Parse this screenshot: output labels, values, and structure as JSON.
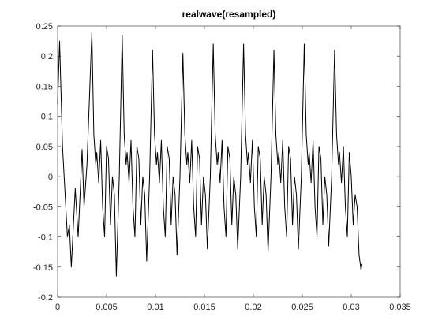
{
  "chart_data": {
    "type": "line",
    "title": "realwave(resampled)",
    "x": [
      0,
      0.0002,
      0.0005,
      0.001,
      0.0012,
      0.0014,
      0.0018,
      0.0021,
      0.0025,
      0.0027,
      0.003,
      0.0035,
      0.0037,
      0.0039,
      0.004,
      0.0042,
      0.0044,
      0.0046,
      0.0048,
      0.005,
      0.0052,
      0.0054,
      0.0056,
      0.0058,
      0.006,
      0.0063,
      0.0066,
      0.0068,
      0.007,
      0.0071,
      0.0073,
      0.0075,
      0.0077,
      0.0079,
      0.0081,
      0.0083,
      0.0085,
      0.0087,
      0.0089,
      0.0091,
      0.0094,
      0.0097,
      0.0099,
      0.0101,
      0.0102,
      0.0104,
      0.0106,
      0.0108,
      0.011,
      0.0112,
      0.0114,
      0.0116,
      0.0118,
      0.012,
      0.0122,
      0.0125,
      0.0128,
      0.013,
      0.0132,
      0.0133,
      0.0135,
      0.0137,
      0.0139,
      0.0141,
      0.0143,
      0.0145,
      0.0147,
      0.0149,
      0.0151,
      0.0153,
      0.0156,
      0.0159,
      0.0161,
      0.0163,
      0.0164,
      0.0166,
      0.0168,
      0.017,
      0.0172,
      0.0174,
      0.0176,
      0.0178,
      0.018,
      0.0182,
      0.0184,
      0.0187,
      0.019,
      0.0192,
      0.0194,
      0.0195,
      0.0197,
      0.0199,
      0.0201,
      0.0203,
      0.0205,
      0.0207,
      0.0209,
      0.0211,
      0.0213,
      0.0215,
      0.0218,
      0.0221,
      0.0223,
      0.0225,
      0.0226,
      0.0228,
      0.023,
      0.0232,
      0.0234,
      0.0236,
      0.0238,
      0.024,
      0.0242,
      0.0244,
      0.0246,
      0.0249,
      0.0252,
      0.0254,
      0.0256,
      0.0257,
      0.0259,
      0.0261,
      0.0263,
      0.0265,
      0.0267,
      0.0269,
      0.0271,
      0.0273,
      0.0275,
      0.0277,
      0.028,
      0.0283,
      0.0285,
      0.0287,
      0.0288,
      0.029,
      0.0292,
      0.0294,
      0.0296,
      0.0298,
      0.03,
      0.0302,
      0.0304,
      0.0306,
      0.0308,
      0.031,
      0.0311
    ],
    "values": [
      0.12,
      0.225,
      0.05,
      -0.1,
      -0.08,
      -0.15,
      -0.02,
      -0.1,
      0.045,
      -0.05,
      0.02,
      0.24,
      0.07,
      0.02,
      0.04,
      -0.01,
      0.06,
      -0.05,
      -0.1,
      0.05,
      0.03,
      -0.08,
      0.0,
      -0.03,
      -0.165,
      0.0,
      0.235,
      0.07,
      0.02,
      0.04,
      -0.01,
      0.06,
      -0.05,
      -0.1,
      0.05,
      0.03,
      -0.08,
      0.0,
      -0.03,
      -0.14,
      0.0,
      0.21,
      0.07,
      0.02,
      0.04,
      -0.01,
      0.06,
      -0.05,
      -0.1,
      0.05,
      0.03,
      -0.08,
      0.0,
      -0.03,
      -0.13,
      0.0,
      0.205,
      0.07,
      0.02,
      0.04,
      -0.01,
      0.06,
      -0.05,
      -0.1,
      0.05,
      0.03,
      -0.08,
      0.0,
      -0.03,
      -0.12,
      0.0,
      0.22,
      0.07,
      0.02,
      0.04,
      -0.01,
      0.06,
      -0.05,
      -0.1,
      0.05,
      0.03,
      -0.08,
      0.0,
      -0.03,
      -0.12,
      0.0,
      0.22,
      0.07,
      0.02,
      0.04,
      -0.01,
      0.06,
      -0.05,
      -0.1,
      0.05,
      0.03,
      -0.08,
      0.0,
      -0.03,
      -0.125,
      0.0,
      0.21,
      0.07,
      0.02,
      0.04,
      -0.01,
      0.06,
      -0.05,
      -0.1,
      0.05,
      0.03,
      -0.08,
      0.0,
      -0.03,
      -0.12,
      0.0,
      0.22,
      0.07,
      0.02,
      0.04,
      -0.01,
      0.06,
      -0.05,
      -0.1,
      0.05,
      0.03,
      -0.08,
      0.0,
      -0.03,
      -0.115,
      0.0,
      0.21,
      0.07,
      0.02,
      0.04,
      -0.01,
      0.05,
      -0.05,
      -0.1,
      0.04,
      0.0,
      -0.08,
      -0.03,
      -0.05,
      -0.13,
      -0.155,
      -0.145
    ],
    "color": "#000000",
    "xlim": [
      0,
      0.035
    ],
    "xticks": [
      0,
      0.005,
      0.01,
      0.015,
      0.02,
      0.025,
      0.03,
      0.035
    ],
    "ylim": [
      -0.2,
      0.25
    ],
    "yticks": [
      -0.2,
      -0.15,
      -0.1,
      -0.05,
      0,
      0.05,
      0.1,
      0.15,
      0.2,
      0.25
    ],
    "grid": false
  }
}
